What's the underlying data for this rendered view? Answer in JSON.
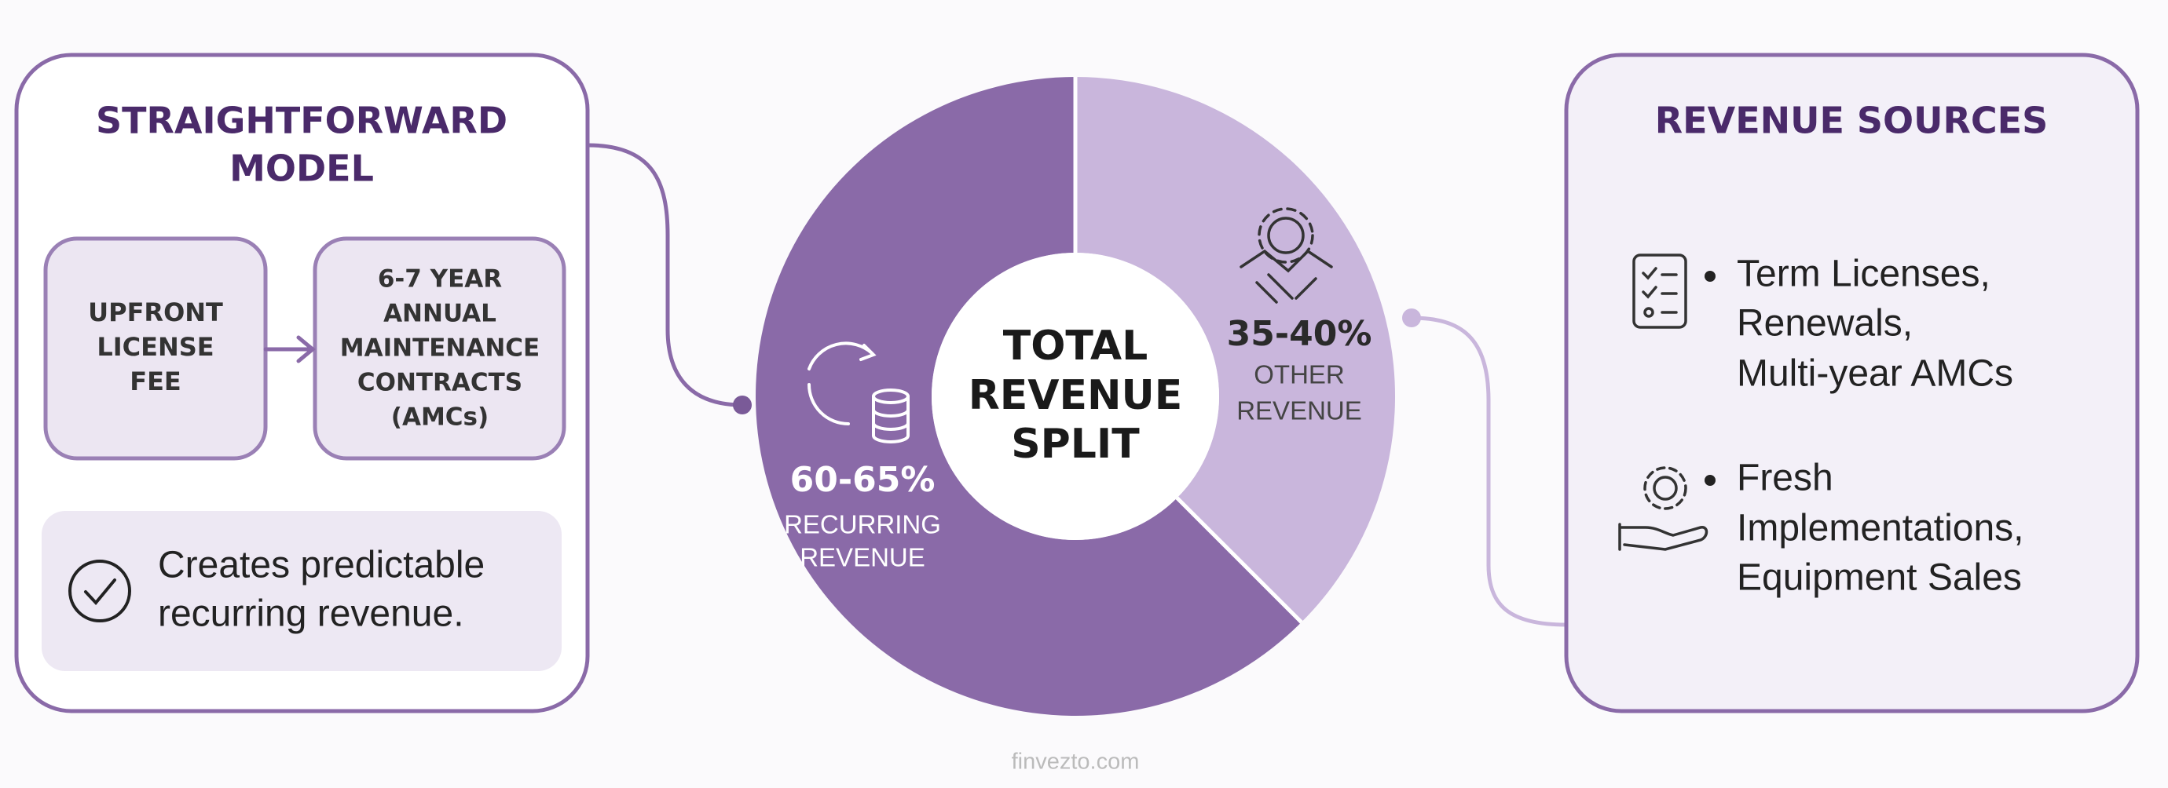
{
  "left_panel": {
    "title": [
      "STRAIGHTFORWARD",
      "MODEL"
    ],
    "steps": [
      [
        "UPFRONT",
        "LICENSE",
        "FEE"
      ],
      [
        "6-7 YEAR",
        "ANNUAL",
        "MAINTENANCE",
        "CONTRACTS",
        "(AMCs)"
      ]
    ],
    "note": [
      "Creates predictable",
      "recurring revenue."
    ]
  },
  "donut": {
    "center": [
      "TOTAL",
      "REVENUE",
      "SPLIT"
    ],
    "segments": [
      {
        "value": "60-65%",
        "label": [
          "RECURRING",
          "REVENUE"
        ]
      },
      {
        "value": "35-40%",
        "label": [
          "OTHER",
          "REVENUE"
        ]
      }
    ]
  },
  "right_panel": {
    "title": "REVENUE SOURCES",
    "items": [
      [
        "Term Licenses,",
        "Renewals,",
        "Multi-year AMCs"
      ],
      [
        "Fresh",
        "Implementations,",
        "Equipment Sales"
      ]
    ]
  },
  "footer": "finvezto.com"
}
